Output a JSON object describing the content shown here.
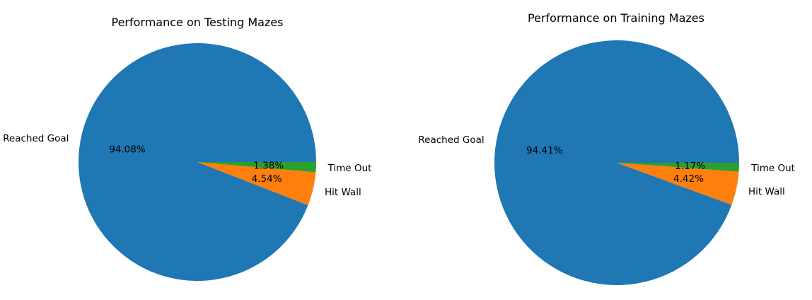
{
  "chart_data": [
    {
      "type": "pie",
      "title": "Performance on Testing Mazes",
      "slices": [
        {
          "label": "Reached Goal",
          "value": 94.08,
          "pct_label": "94.08%",
          "color": "#1f77b4"
        },
        {
          "label": "Hit Wall",
          "value": 4.54,
          "pct_label": "4.54%",
          "color": "#ff7f0e"
        },
        {
          "label": "Time Out",
          "value": 1.38,
          "pct_label": "1.38%",
          "color": "#2ca02c"
        }
      ]
    },
    {
      "type": "pie",
      "title": "Performance on Training Mazes",
      "slices": [
        {
          "label": "Reached Goal",
          "value": 94.41,
          "pct_label": "94.41%",
          "color": "#1f77b4"
        },
        {
          "label": "Hit Wall",
          "value": 4.42,
          "pct_label": "4.42%",
          "color": "#ff7f0e"
        },
        {
          "label": "Time Out",
          "value": 1.17,
          "pct_label": "1.17%",
          "color": "#2ca02c"
        }
      ]
    }
  ]
}
